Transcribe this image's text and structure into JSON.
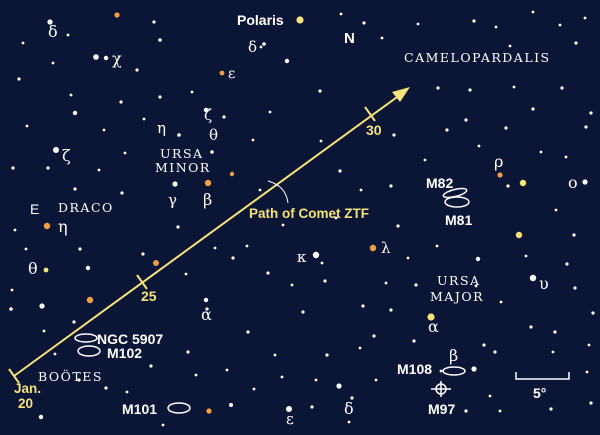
{
  "colors": {
    "background": "#0b1535",
    "star_white": "#ffffff",
    "star_yellow": "#f5e27a",
    "star_orange": "#f0a040",
    "comet_path": "#f5e27a"
  },
  "title_north": "N",
  "constellations": {
    "camelopardalis": "CAMELOPARDALIS",
    "ursa_minor_1": "URSA",
    "ursa_minor_2": "MINOR",
    "draco": "DRACO",
    "ursa_major_1": "URSA",
    "ursa_major_2": "MAJOR",
    "bootes": "BOÖTES"
  },
  "compass_east": "E",
  "named_star": "Polaris",
  "comet": {
    "path_label": "Path of Comet ZTF",
    "date_month": "Jan.",
    "date_20": "20",
    "date_25": "25",
    "date_30": "30"
  },
  "galaxies": {
    "ngc5907": "NGC 5907",
    "m102": "M102",
    "m101": "M101",
    "m82": "M82",
    "m81": "M81",
    "m108": "M108",
    "m97": "M97"
  },
  "greek": {
    "delta_draco": "δ",
    "chi_draco": "χ",
    "epsilon_umi": "ε",
    "delta_umi": "δ",
    "eta_umi": "η",
    "zeta_umi": "ζ",
    "theta_umi": "θ",
    "gamma_umi": "γ",
    "beta_umi": "β",
    "alpha_umi": "α",
    "zeta_draco": "ζ",
    "eta_draco": "η",
    "theta_draco": "θ",
    "kappa_draco": "κ",
    "lambda_draco": "λ",
    "rho_cam": "ρ",
    "omicron_uma": "ο",
    "upsilon_uma": "υ",
    "alpha_uma": "α",
    "beta_uma": "β",
    "epsilon_uma": "ε",
    "delta_uma": "δ"
  },
  "scale_label": "5°"
}
